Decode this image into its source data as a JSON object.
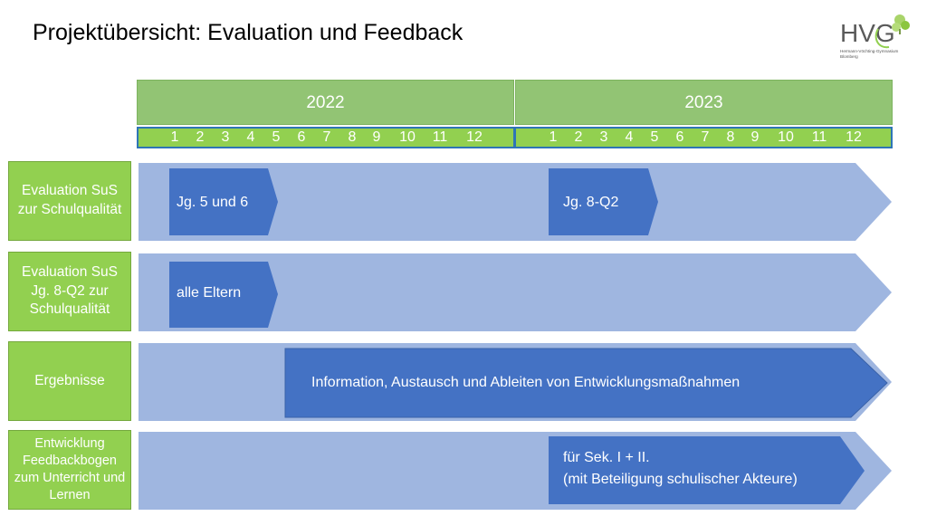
{
  "title": "Projektübersicht: Evaluation und Feedback",
  "logo": {
    "letters": "HVG",
    "line1": "Hermann-Vöchting-Gymnasium",
    "line2": "Blomberg",
    "colors": {
      "text": "#5a5a5a",
      "accent": "#92d050"
    }
  },
  "years": [
    "2022",
    "2023"
  ],
  "months": [
    "1",
    "2",
    "3",
    "4",
    "5",
    "6",
    "7",
    "8",
    "9",
    "10",
    "11",
    "12"
  ],
  "rows": [
    {
      "label": "Evaluation SuS zur Schulqualität",
      "phases": [
        "Jg. 5 und 6",
        "Jg. 8-Q2"
      ]
    },
    {
      "label": "Evaluation SuS Jg. 8-Q2 zur Schulqualität",
      "phases": [
        "alle Eltern"
      ]
    },
    {
      "label": "Ergebnisse",
      "phases": [
        "Information, Austausch und Ableiten von Entwicklungsmaßnahmen"
      ]
    },
    {
      "label": "Entwicklung Feedbackbogen zum Unterricht und Lernen",
      "phases": [
        "für Sek. I + II.",
        "(mit Beteiligung schulischer Akteure)"
      ]
    }
  ],
  "colors": {
    "year_header": "#92c474",
    "month_bar": "#92d050",
    "month_border": "#2e75b6",
    "lane": "#9fb6e0",
    "phase": "#4472c4",
    "label_box": "#92d050"
  }
}
